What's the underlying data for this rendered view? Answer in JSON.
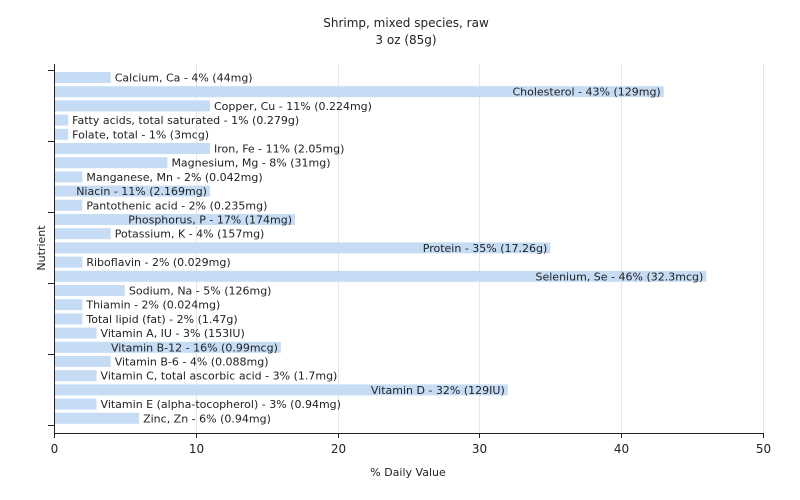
{
  "chart_data": {
    "type": "bar",
    "orientation": "horizontal",
    "title": "Shrimp, mixed species, raw",
    "subtitle": "3 oz (85g)",
    "xlabel": "% Daily Value",
    "ylabel": "Nutrient",
    "xlim": [
      0,
      50
    ],
    "xticks": [
      0,
      10,
      20,
      30,
      40,
      50
    ],
    "grid": true,
    "bar_color": "#c6dcf5",
    "categories": [
      "Calcium, Ca",
      "Cholesterol",
      "Copper, Cu",
      "Fatty acids, total saturated",
      "Folate, total",
      "Iron, Fe",
      "Magnesium, Mg",
      "Manganese, Mn",
      "Niacin",
      "Pantothenic acid",
      "Phosphorus, P",
      "Potassium, K",
      "Protein",
      "Riboflavin",
      "Selenium, Se",
      "Sodium, Na",
      "Thiamin",
      "Total lipid (fat)",
      "Vitamin A, IU",
      "Vitamin B-12",
      "Vitamin B-6",
      "Vitamin C, total ascorbic acid",
      "Vitamin D",
      "Vitamin E (alpha-tocopherol)",
      "Zinc, Zn"
    ],
    "values": [
      4,
      43,
      11,
      1,
      1,
      11,
      8,
      2,
      11,
      2,
      17,
      4,
      35,
      2,
      46,
      5,
      2,
      2,
      3,
      16,
      4,
      3,
      32,
      3,
      6
    ],
    "labels": [
      "Calcium, Ca - 4% (44mg)",
      "Cholesterol - 43% (129mg)",
      "Copper, Cu - 11% (0.224mg)",
      "Fatty acids, total saturated - 1% (0.279g)",
      "Folate, total - 1% (3mcg)",
      "Iron, Fe - 11% (2.05mg)",
      "Magnesium, Mg - 8% (31mg)",
      "Manganese, Mn - 2% (0.042mg)",
      "Niacin - 11% (2.169mg)",
      "Pantothenic acid - 2% (0.235mg)",
      "Phosphorus, P - 17% (174mg)",
      "Potassium, K - 4% (157mg)",
      "Protein - 35% (17.26g)",
      "Riboflavin - 2% (0.029mg)",
      "Selenium, Se - 46% (32.3mcg)",
      "Sodium, Na - 5% (126mg)",
      "Thiamin - 2% (0.024mg)",
      "Total lipid (fat) - 2% (1.47g)",
      "Vitamin A, IU - 3% (153IU)",
      "Vitamin B-12 - 16% (0.99mcg)",
      "Vitamin B-6 - 4% (0.088mg)",
      "Vitamin C, total ascorbic acid - 3% (1.7mg)",
      "Vitamin D - 32% (129IU)",
      "Vitamin E (alpha-tocopherol) - 3% (0.94mg)",
      "Zinc, Zn - 6% (0.94mg)"
    ]
  }
}
